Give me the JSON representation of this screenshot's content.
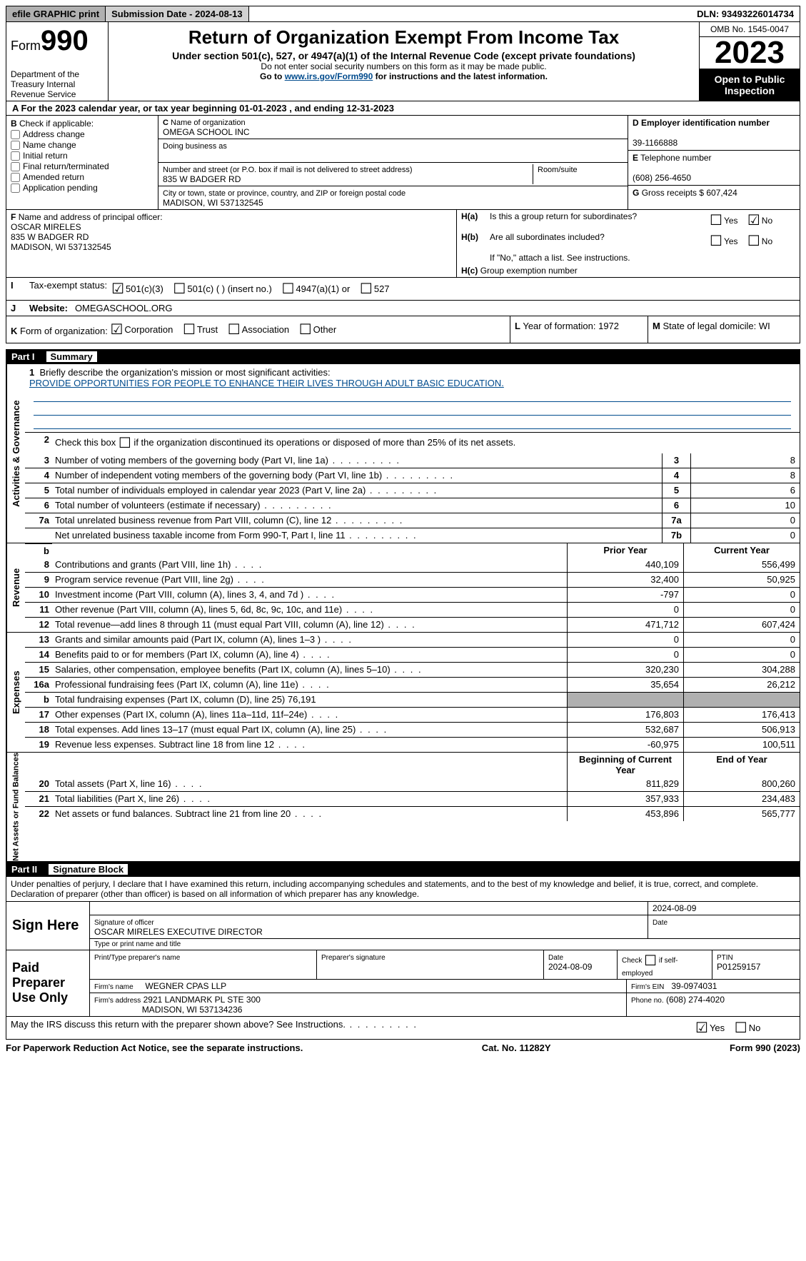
{
  "topbar": {
    "efile": "efile GRAPHIC print",
    "submission": "Submission Date - 2024-08-13",
    "dln": "DLN: 93493226014734"
  },
  "header": {
    "form_label": "Form",
    "form_number": "990",
    "dept": "Department of the Treasury\nInternal Revenue Service",
    "title": "Return of Organization Exempt From Income Tax",
    "subtitle": "Under section 501(c), 527, or 4947(a)(1) of the Internal Revenue Code (except private foundations)",
    "note1": "Do not enter social security numbers on this form as it may be made public.",
    "note2_pre": "Go to ",
    "note2_link": "www.irs.gov/Form990",
    "note2_post": " for instructions and the latest information.",
    "omb": "OMB No. 1545-0047",
    "year": "2023",
    "inspect": "Open to Public Inspection"
  },
  "section_a": "For the 2023 calendar year, or tax year beginning 01-01-2023   , and ending 12-31-2023",
  "box_b": {
    "label": "Check if applicable:",
    "items": [
      "Address change",
      "Name change",
      "Initial return",
      "Final return/terminated",
      "Amended return",
      "Application pending"
    ]
  },
  "box_c": {
    "name_label": "Name of organization",
    "name": "OMEGA SCHOOL INC",
    "dba_label": "Doing business as",
    "dba": "",
    "street_label": "Number and street (or P.O. box if mail is not delivered to street address)",
    "street": "835 W BADGER RD",
    "room_label": "Room/suite",
    "room": "",
    "city_label": "City or town, state or province, country, and ZIP or foreign postal code",
    "city": "MADISON, WI  537132545"
  },
  "box_d": {
    "label": "Employer identification number",
    "value": "39-1166888"
  },
  "box_e": {
    "label": "Telephone number",
    "value": "(608) 256-4650"
  },
  "box_g": {
    "label": "Gross receipts $ 607,424"
  },
  "box_f": {
    "label": "Name and address of principal officer:",
    "name": "OSCAR MIRELES",
    "addr1": "835 W BADGER RD",
    "addr2": "MADISON, WI  537132545"
  },
  "box_h": {
    "a": "Is this a group return for subordinates?",
    "b": "Are all subordinates included?",
    "note": "If \"No,\" attach a list. See instructions.",
    "c": "Group exemption number",
    "yes": "Yes",
    "no": "No"
  },
  "tax_exempt": {
    "label": "Tax-exempt status:",
    "opt1": "501(c)(3)",
    "opt2": "501(c) (  ) (insert no.)",
    "opt3": "4947(a)(1) or",
    "opt4": "527"
  },
  "website": {
    "label": "Website:",
    "value": "OMEGASCHOOL.ORG"
  },
  "form_org": {
    "label": "Form of organization:",
    "opts": [
      "Corporation",
      "Trust",
      "Association",
      "Other"
    ]
  },
  "box_l": {
    "label": "Year of formation: 1972"
  },
  "box_m": {
    "label": "State of legal domicile: WI"
  },
  "part1": {
    "header_num": "Part I",
    "header_title": "Summary",
    "side_activities": "Activities & Governance",
    "side_revenue": "Revenue",
    "side_expenses": "Expenses",
    "side_netassets": "Net Assets or Fund Balances",
    "line1_label": "Briefly describe the organization's mission or most significant activities:",
    "line1_value": "PROVIDE OPPORTUNITIES FOR PEOPLE TO ENHANCE THEIR LIVES THROUGH ADULT BASIC EDUCATION.",
    "line2": "Check this box       if the organization discontinued its operations or disposed of more than 25% of its net assets.",
    "lines_gov": [
      {
        "num": "3",
        "desc": "Number of voting members of the governing body (Part VI, line 1a)",
        "box": "3",
        "val": "8"
      },
      {
        "num": "4",
        "desc": "Number of independent voting members of the governing body (Part VI, line 1b)",
        "box": "4",
        "val": "8"
      },
      {
        "num": "5",
        "desc": "Total number of individuals employed in calendar year 2023 (Part V, line 2a)",
        "box": "5",
        "val": "6"
      },
      {
        "num": "6",
        "desc": "Total number of volunteers (estimate if necessary)",
        "box": "6",
        "val": "10"
      },
      {
        "num": "7a",
        "desc": "Total unrelated business revenue from Part VIII, column (C), line 12",
        "box": "7a",
        "val": "0"
      },
      {
        "num": "",
        "desc": "Net unrelated business taxable income from Form 990-T, Part I, line 11",
        "box": "7b",
        "val": "0"
      }
    ],
    "col_prior": "Prior Year",
    "col_current": "Current Year",
    "lines_rev": [
      {
        "num": "8",
        "desc": "Contributions and grants (Part VIII, line 1h)",
        "prior": "440,109",
        "current": "556,499"
      },
      {
        "num": "9",
        "desc": "Program service revenue (Part VIII, line 2g)",
        "prior": "32,400",
        "current": "50,925"
      },
      {
        "num": "10",
        "desc": "Investment income (Part VIII, column (A), lines 3, 4, and 7d )",
        "prior": "-797",
        "current": "0"
      },
      {
        "num": "11",
        "desc": "Other revenue (Part VIII, column (A), lines 5, 6d, 8c, 9c, 10c, and 11e)",
        "prior": "0",
        "current": "0"
      },
      {
        "num": "12",
        "desc": "Total revenue—add lines 8 through 11 (must equal Part VIII, column (A), line 12)",
        "prior": "471,712",
        "current": "607,424"
      }
    ],
    "lines_exp": [
      {
        "num": "13",
        "desc": "Grants and similar amounts paid (Part IX, column (A), lines 1–3 )",
        "prior": "0",
        "current": "0"
      },
      {
        "num": "14",
        "desc": "Benefits paid to or for members (Part IX, column (A), line 4)",
        "prior": "0",
        "current": "0"
      },
      {
        "num": "15",
        "desc": "Salaries, other compensation, employee benefits (Part IX, column (A), lines 5–10)",
        "prior": "320,230",
        "current": "304,288"
      },
      {
        "num": "16a",
        "desc": "Professional fundraising fees (Part IX, column (A), line 11e)",
        "prior": "35,654",
        "current": "26,212"
      },
      {
        "num": "b",
        "desc": "Total fundraising expenses (Part IX, column (D), line 25) 76,191",
        "prior": "",
        "current": "",
        "shaded": true
      },
      {
        "num": "17",
        "desc": "Other expenses (Part IX, column (A), lines 11a–11d, 11f–24e)",
        "prior": "176,803",
        "current": "176,413"
      },
      {
        "num": "18",
        "desc": "Total expenses. Add lines 13–17 (must equal Part IX, column (A), line 25)",
        "prior": "532,687",
        "current": "506,913"
      },
      {
        "num": "19",
        "desc": "Revenue less expenses. Subtract line 18 from line 12",
        "prior": "-60,975",
        "current": "100,511"
      }
    ],
    "col_begin": "Beginning of Current Year",
    "col_end": "End of Year",
    "lines_net": [
      {
        "num": "20",
        "desc": "Total assets (Part X, line 16)",
        "prior": "811,829",
        "current": "800,260"
      },
      {
        "num": "21",
        "desc": "Total liabilities (Part X, line 26)",
        "prior": "357,933",
        "current": "234,483"
      },
      {
        "num": "22",
        "desc": "Net assets or fund balances. Subtract line 21 from line 20",
        "prior": "453,896",
        "current": "565,777"
      }
    ]
  },
  "part2": {
    "header_num": "Part II",
    "header_title": "Signature Block",
    "penalty": "Under penalties of perjury, I declare that I have examined this return, including accompanying schedules and statements, and to the best of my knowledge and belief, it is true, correct, and complete. Declaration of preparer (other than officer) is based on all information of which preparer has any knowledge."
  },
  "sign": {
    "here": "Sign Here",
    "sig_officer_label": "Signature of officer",
    "sig_officer": "OSCAR MIRELES EXECUTIVE DIRECTOR",
    "sig_type_label": "Type or print name and title",
    "date_label": "Date",
    "date": "2024-08-09"
  },
  "preparer": {
    "label": "Paid Preparer Use Only",
    "print_name_label": "Print/Type preparer's name",
    "print_name": "",
    "sig_label": "Preparer's signature",
    "date_label": "Date",
    "date": "2024-08-09",
    "self_emp": "Check       if self-employed",
    "ptin_label": "PTIN",
    "ptin": "P01259157",
    "firm_name_label": "Firm's name",
    "firm_name": "WEGNER CPAS LLP",
    "firm_ein_label": "Firm's EIN",
    "firm_ein": "39-0974031",
    "firm_addr_label": "Firm's address",
    "firm_addr1": "2921 LANDMARK PL STE 300",
    "firm_addr2": "MADISON, WI  537134236",
    "phone_label": "Phone no.",
    "phone": "(608) 274-4020"
  },
  "discuss": {
    "text": "May the IRS discuss this return with the preparer shown above? See Instructions.",
    "yes": "Yes",
    "no": "No"
  },
  "footer": {
    "left": "For Paperwork Reduction Act Notice, see the separate instructions.",
    "mid": "Cat. No. 11282Y",
    "right_pre": "Form ",
    "right_form": "990",
    "right_post": " (2023)"
  }
}
